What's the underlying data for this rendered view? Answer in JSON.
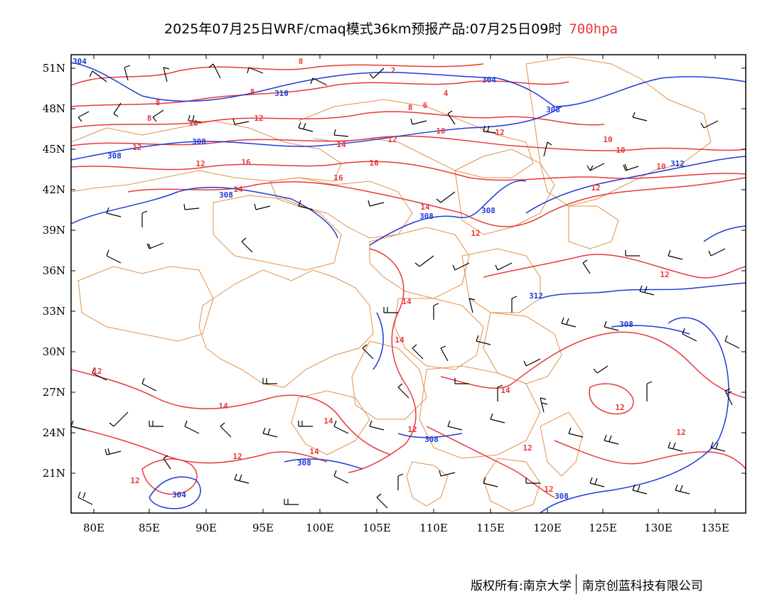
{
  "title": {
    "main": "2025年07月25日WRF/cmaq模式36km预报产品:07月25日09时",
    "level": "700hpa"
  },
  "colors": {
    "temperature": "#e8393b",
    "height": "#1f3bd6",
    "boundary": "#e0904a",
    "wind": "#000000"
  },
  "axes": {
    "lat_labels": [
      "51N",
      "48N",
      "45N",
      "42N",
      "39N",
      "36N",
      "33N",
      "30N",
      "27N",
      "24N",
      "21N"
    ],
    "lon_labels": [
      "80E",
      "85E",
      "90E",
      "95E",
      "100E",
      "105E",
      "110E",
      "115E",
      "120E",
      "125E",
      "130E",
      "135E"
    ]
  },
  "contour_labels": {
    "temperature": [
      "8",
      "8",
      "8",
      "2",
      "4",
      "6",
      "8",
      "8",
      "10",
      "12",
      "10",
      "12",
      "12",
      "14",
      "16",
      "16",
      "16",
      "14",
      "12",
      "10",
      "10",
      "10",
      "12",
      "14",
      "14",
      "14",
      "14",
      "12",
      "12",
      "12",
      "14",
      "14",
      "12",
      "12",
      "12",
      "12",
      "12",
      "12",
      "14",
      "12",
      "12"
    ],
    "height": [
      "304",
      "310",
      "304",
      "308",
      "308",
      "308",
      "312",
      "308",
      "308",
      "308",
      "312",
      "308",
      "308",
      "308",
      "304",
      "308"
    ]
  },
  "footer": {
    "left": "版权所有:南京大学",
    "right": "南京创蓝科技有限公司"
  }
}
